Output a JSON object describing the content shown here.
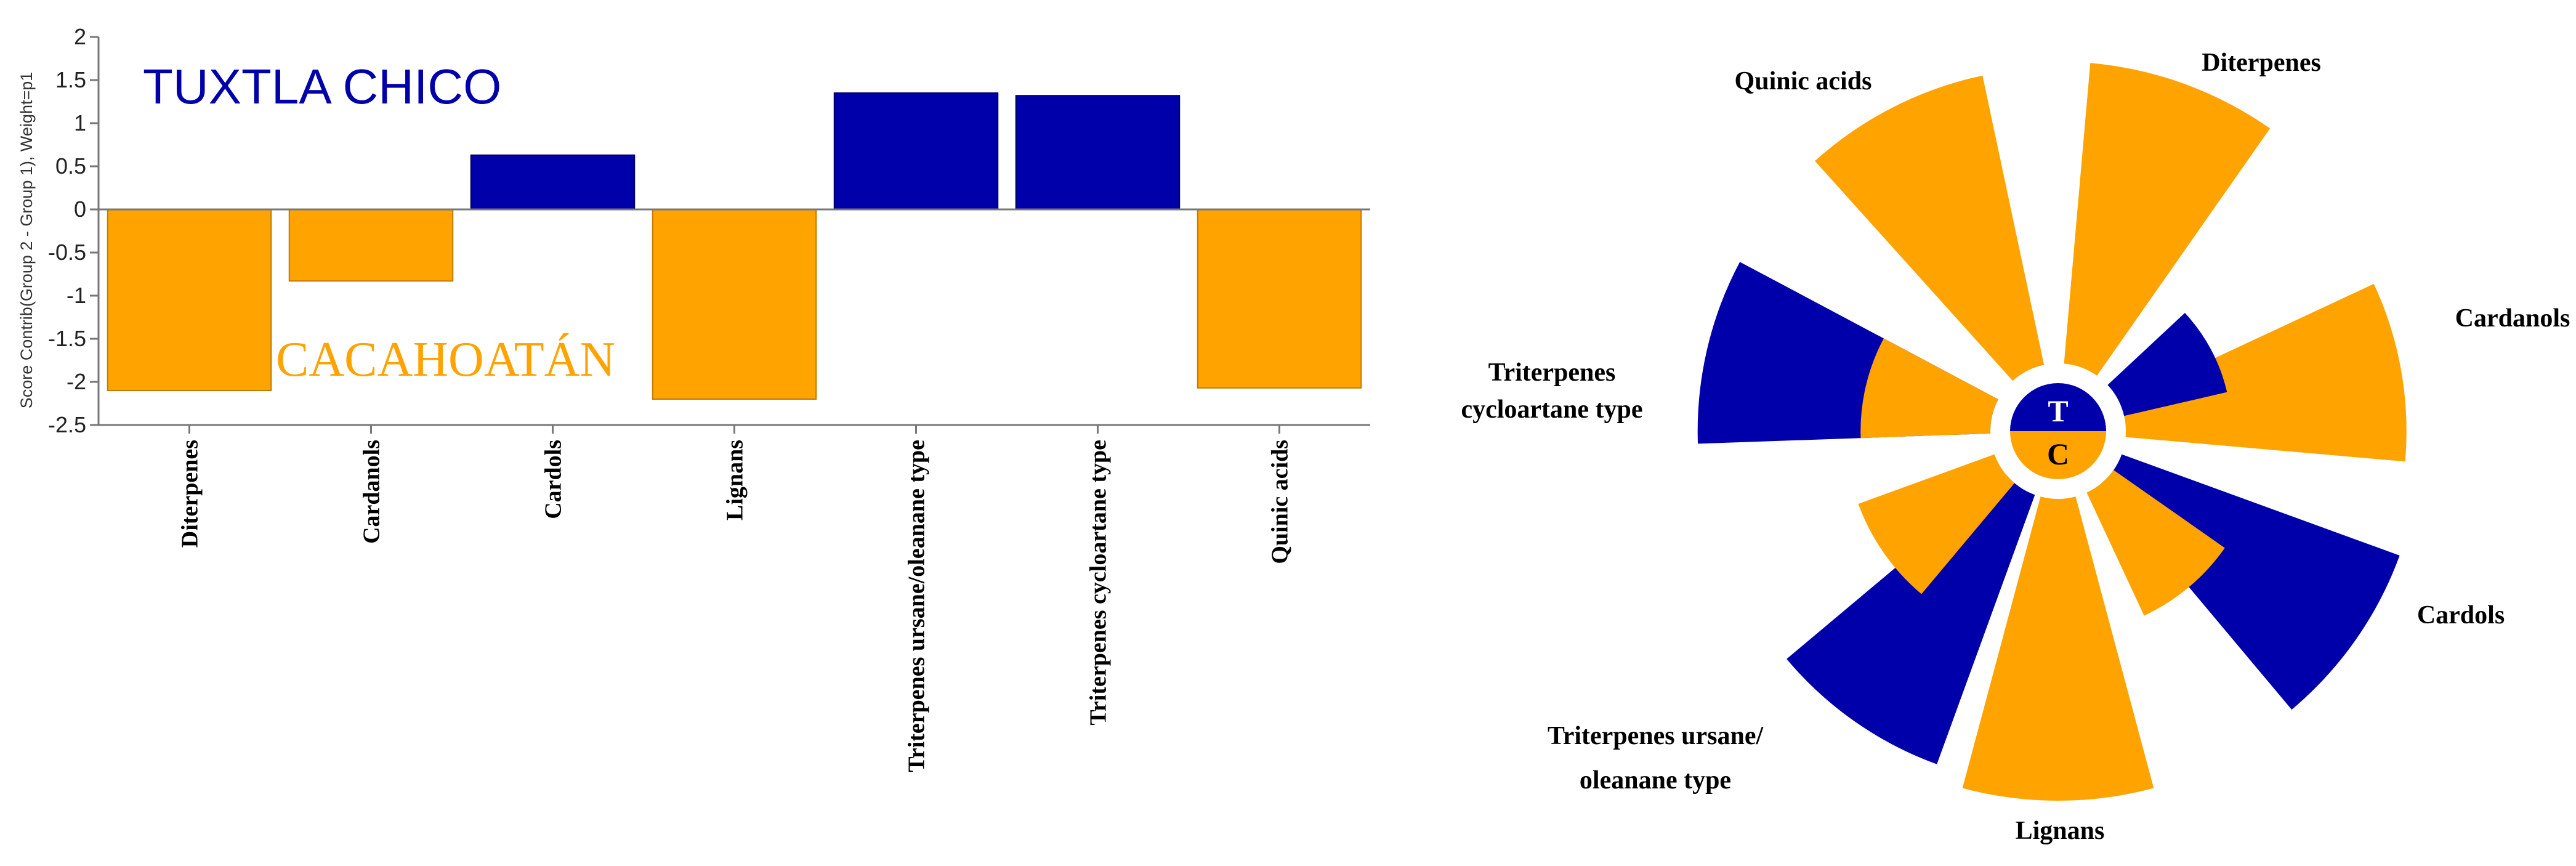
{
  "colors": {
    "positive": "#0000aa",
    "negative": "#ffa300",
    "axis": "#777777"
  },
  "chart_data": [
    {
      "type": "bar",
      "ylabel": "Score Contrib(Group 2 - Group 1), Weight=p1",
      "ylim": [
        -2.5,
        2
      ],
      "yticks": [
        "2",
        "1.5",
        "1",
        "0.5",
        "0",
        "-0.5",
        "-1",
        "-1.5",
        "-2",
        "-2.5"
      ],
      "categories": [
        "Diterpenes",
        "Cardanols",
        "Cardols",
        "Lignans",
        "Triterpenes ursane/oleanane type",
        "Triterpenes cycloartane type",
        "Quinic acids"
      ],
      "values": [
        -2.1,
        -0.83,
        0.63,
        -2.2,
        1.35,
        1.32,
        -2.07
      ],
      "group_labels": {
        "positive": "TUXTLA CHICO",
        "negative": "CACAHOATÁN"
      }
    },
    {
      "type": "polar-bar",
      "center": {
        "top": "T",
        "bottom": "C"
      },
      "sectors": [
        {
          "label": "Diterpenes",
          "angle": 20,
          "outer": 1.0
        },
        {
          "label": "Cardanols",
          "angle": 80,
          "outer": 0.93
        },
        {
          "label": "Cardanols (T)",
          "angle": 62,
          "outer": 0.35
        },
        {
          "label": "Cardols",
          "angle": 125,
          "outer": 0.98
        },
        {
          "label": "Cardols (C)",
          "angle": 140,
          "outer": 0.45
        },
        {
          "label": "Lignans",
          "angle": 180,
          "outer": 1.0
        },
        {
          "label": "Triterpenes ursane/oleanane type",
          "angle": 215,
          "outer": 0.95
        },
        {
          "label": "Triterpenes ursane/oleanane type (C)",
          "angle": 235,
          "outer": 0.48
        },
        {
          "label": "Triterpenes cycloartane type",
          "angle": 283,
          "outer": 0.97
        },
        {
          "label": "Triterpenes cycloartane type (C)",
          "angle": 283,
          "outer": 0.43
        },
        {
          "label": "Quinic acids",
          "angle": 333,
          "outer": 0.98
        }
      ],
      "sector_series": [
        "C",
        "C",
        "T",
        "T",
        "C",
        "C",
        "T",
        "C",
        "T",
        "C",
        "C"
      ],
      "labels": {
        "diterpenes": "Diterpenes",
        "quinic": "Quinic acids",
        "cardanols": "Cardanols",
        "tri_cyclo_1": "Triterpenes",
        "tri_cyclo_2": "cycloartane type",
        "cardols": "Cardols",
        "tri_urs_1": "Triterpenes ursane/",
        "tri_urs_2": "oleanane type",
        "lignans": "Lignans"
      }
    }
  ]
}
